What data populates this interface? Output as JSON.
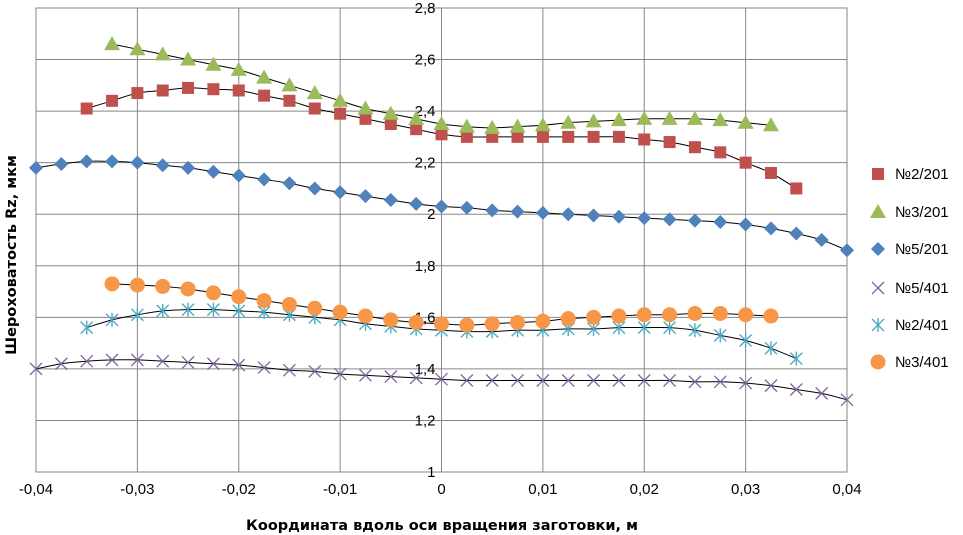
{
  "chart_data": {
    "type": "scatter",
    "xlabel": "Координата вдоль оси вращения заготовки, м",
    "ylabel": "Шероховатость Rz, мкм",
    "xlim": [
      -0.04,
      0.04
    ],
    "ylim": [
      1,
      2.8
    ],
    "xticks": [
      -0.04,
      -0.03,
      -0.02,
      -0.01,
      0,
      0.01,
      0.02,
      0.03,
      0.04
    ],
    "yticks": [
      1,
      1.2,
      1.4,
      1.6,
      1.8,
      2,
      2.2,
      2.4,
      2.6,
      2.8
    ],
    "xtick_labels": [
      "-0,04",
      "-0,03",
      "-0,02",
      "-0,01",
      "0",
      "0,01",
      "0,02",
      "0,03",
      "0,04"
    ],
    "ytick_labels": [
      "1",
      "1,2",
      "1,4",
      "1,6",
      "1,8",
      "2",
      "2,2",
      "2,4",
      "2,6",
      "2,8"
    ],
    "grid": true,
    "legend_position": "right",
    "series": [
      {
        "name": "№2/201",
        "marker": "square",
        "color": "#C0504D",
        "x": [
          -0.035,
          -0.0325,
          -0.03,
          -0.0275,
          -0.025,
          -0.0225,
          -0.02,
          -0.0175,
          -0.015,
          -0.0125,
          -0.01,
          -0.0075,
          -0.005,
          -0.0025,
          0,
          0.0025,
          0.005,
          0.0075,
          0.01,
          0.0125,
          0.015,
          0.0175,
          0.02,
          0.0225,
          0.025,
          0.0275,
          0.03,
          0.0325,
          0.035
        ],
        "y": [
          2.41,
          2.44,
          2.47,
          2.48,
          2.49,
          2.485,
          2.48,
          2.46,
          2.44,
          2.41,
          2.39,
          2.37,
          2.35,
          2.33,
          2.31,
          2.3,
          2.3,
          2.3,
          2.3,
          2.3,
          2.3,
          2.3,
          2.29,
          2.28,
          2.26,
          2.24,
          2.2,
          2.16,
          2.1
        ]
      },
      {
        "name": "№3/201",
        "marker": "triangle",
        "color": "#9BBB59",
        "x": [
          -0.0325,
          -0.03,
          -0.0275,
          -0.025,
          -0.0225,
          -0.02,
          -0.0175,
          -0.015,
          -0.0125,
          -0.01,
          -0.0075,
          -0.005,
          -0.0025,
          0,
          0.0025,
          0.005,
          0.0075,
          0.01,
          0.0125,
          0.015,
          0.0175,
          0.02,
          0.0225,
          0.025,
          0.0275,
          0.03,
          0.0325
        ],
        "y": [
          2.66,
          2.64,
          2.62,
          2.6,
          2.58,
          2.56,
          2.53,
          2.5,
          2.47,
          2.44,
          2.41,
          2.39,
          2.37,
          2.35,
          2.34,
          2.335,
          2.34,
          2.345,
          2.355,
          2.36,
          2.365,
          2.37,
          2.37,
          2.37,
          2.365,
          2.355,
          2.345
        ]
      },
      {
        "name": "№5/201",
        "marker": "diamond",
        "color": "#4F81BD",
        "x": [
          -0.04,
          -0.0375,
          -0.035,
          -0.0325,
          -0.03,
          -0.0275,
          -0.025,
          -0.0225,
          -0.02,
          -0.0175,
          -0.015,
          -0.0125,
          -0.01,
          -0.0075,
          -0.005,
          -0.0025,
          0,
          0.0025,
          0.005,
          0.0075,
          0.01,
          0.0125,
          0.015,
          0.0175,
          0.02,
          0.0225,
          0.025,
          0.0275,
          0.03,
          0.0325,
          0.035,
          0.0375,
          0.04
        ],
        "y": [
          2.18,
          2.195,
          2.205,
          2.205,
          2.2,
          2.19,
          2.18,
          2.165,
          2.15,
          2.135,
          2.12,
          2.1,
          2.085,
          2.07,
          2.055,
          2.04,
          2.03,
          2.025,
          2.015,
          2.01,
          2.005,
          2.0,
          1.995,
          1.99,
          1.985,
          1.98,
          1.975,
          1.97,
          1.96,
          1.945,
          1.925,
          1.9,
          1.86
        ]
      },
      {
        "name": "№5/401",
        "marker": "x",
        "color": "#8064A2",
        "x": [
          -0.04,
          -0.0375,
          -0.035,
          -0.0325,
          -0.03,
          -0.0275,
          -0.025,
          -0.0225,
          -0.02,
          -0.0175,
          -0.015,
          -0.0125,
          -0.01,
          -0.0075,
          -0.005,
          -0.0025,
          0,
          0.0025,
          0.005,
          0.0075,
          0.01,
          0.0125,
          0.015,
          0.0175,
          0.02,
          0.0225,
          0.025,
          0.0275,
          0.03,
          0.0325,
          0.035,
          0.0375,
          0.04
        ],
        "y": [
          1.4,
          1.42,
          1.43,
          1.435,
          1.435,
          1.43,
          1.425,
          1.42,
          1.415,
          1.405,
          1.395,
          1.39,
          1.38,
          1.375,
          1.37,
          1.365,
          1.36,
          1.355,
          1.355,
          1.355,
          1.355,
          1.355,
          1.355,
          1.355,
          1.355,
          1.355,
          1.35,
          1.35,
          1.345,
          1.335,
          1.32,
          1.305,
          1.28
        ]
      },
      {
        "name": "№2/401",
        "marker": "asterisk",
        "color": "#4BACC6",
        "x": [
          -0.035,
          -0.0325,
          -0.03,
          -0.0275,
          -0.025,
          -0.0225,
          -0.02,
          -0.0175,
          -0.015,
          -0.0125,
          -0.01,
          -0.0075,
          -0.005,
          -0.0025,
          0,
          0.0025,
          0.005,
          0.0075,
          0.01,
          0.0125,
          0.015,
          0.0175,
          0.02,
          0.0225,
          0.025,
          0.0275,
          0.03,
          0.0325,
          0.035
        ],
        "y": [
          1.56,
          1.59,
          1.61,
          1.625,
          1.63,
          1.63,
          1.625,
          1.62,
          1.61,
          1.6,
          1.59,
          1.575,
          1.565,
          1.555,
          1.55,
          1.545,
          1.545,
          1.55,
          1.55,
          1.555,
          1.555,
          1.56,
          1.56,
          1.56,
          1.55,
          1.53,
          1.51,
          1.48,
          1.44
        ]
      },
      {
        "name": "№3/401",
        "marker": "circle",
        "color": "#F79646",
        "x": [
          -0.0325,
          -0.03,
          -0.0275,
          -0.025,
          -0.0225,
          -0.02,
          -0.0175,
          -0.015,
          -0.0125,
          -0.01,
          -0.0075,
          -0.005,
          -0.0025,
          0,
          0.0025,
          0.005,
          0.0075,
          0.01,
          0.0125,
          0.015,
          0.0175,
          0.02,
          0.0225,
          0.025,
          0.0275,
          0.03,
          0.0325
        ],
        "y": [
          1.73,
          1.725,
          1.72,
          1.71,
          1.695,
          1.68,
          1.665,
          1.65,
          1.635,
          1.62,
          1.605,
          1.59,
          1.58,
          1.575,
          1.57,
          1.575,
          1.58,
          1.585,
          1.595,
          1.6,
          1.605,
          1.61,
          1.61,
          1.615,
          1.615,
          1.61,
          1.605
        ]
      }
    ]
  }
}
